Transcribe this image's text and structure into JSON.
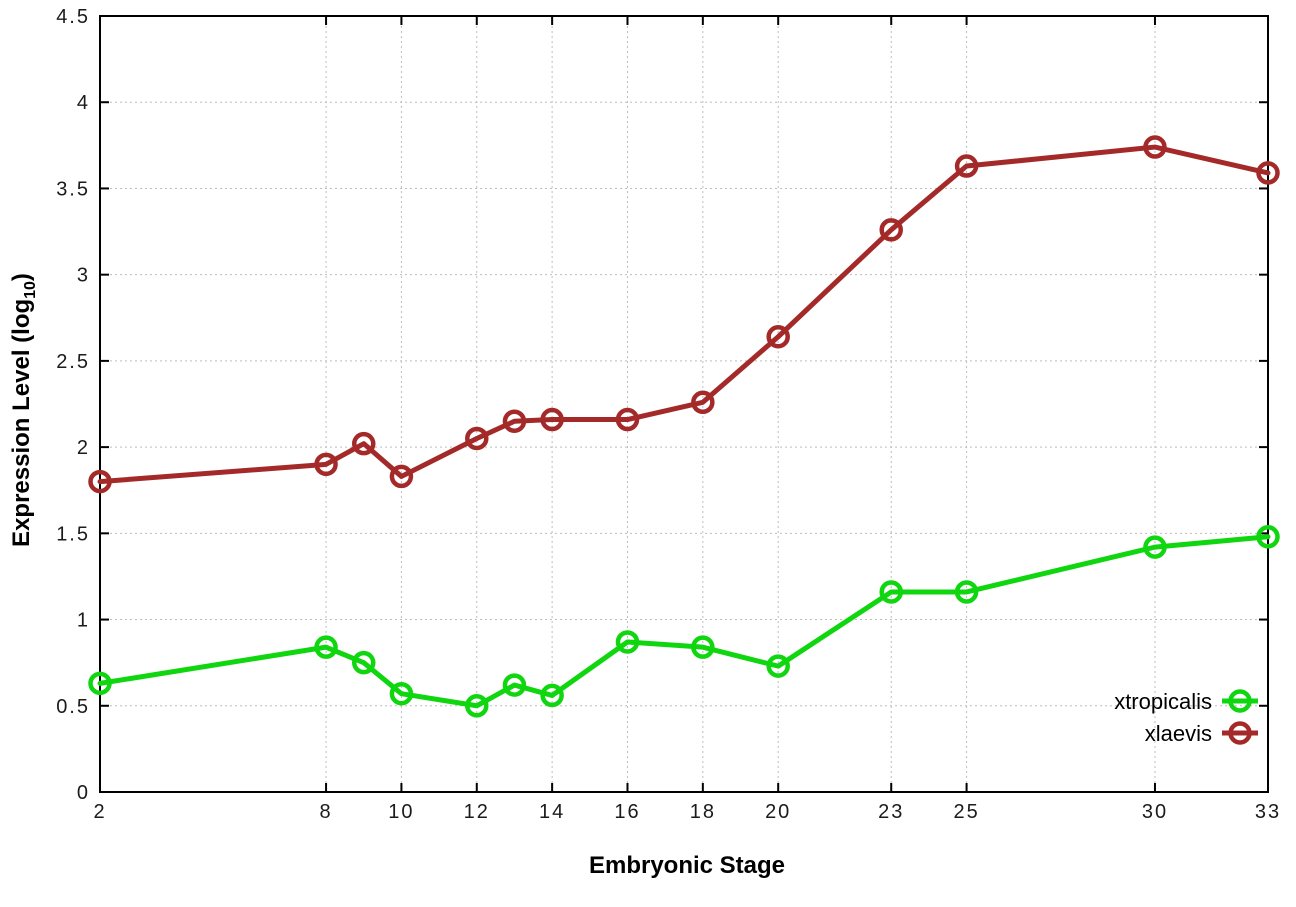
{
  "chart_data": {
    "type": "line",
    "title": "",
    "xlabel": "Embryonic Stage",
    "ylabel": "Expression Level (log10)",
    "ylabel_parts": {
      "main": "Expression Level (log",
      "sub": "10",
      "end": ")"
    },
    "xlim": [
      2,
      33
    ],
    "ylim": [
      0,
      4.5
    ],
    "grid": true,
    "legend_position": "bottom-right",
    "marker": "open-circle",
    "x": [
      2,
      8,
      9,
      10,
      12,
      13,
      14,
      16,
      18,
      20,
      23,
      25,
      30,
      33
    ],
    "xticks": [
      2,
      8,
      10,
      12,
      14,
      16,
      18,
      20,
      23,
      25,
      30,
      33
    ],
    "xtick_labels": [
      "2",
      "8",
      "10",
      "12",
      "14",
      "16",
      "18",
      "20",
      "23",
      "25",
      "30",
      "33"
    ],
    "yticks": [
      0,
      0.5,
      1,
      1.5,
      2,
      2.5,
      3,
      3.5,
      4,
      4.5
    ],
    "ytick_labels": [
      "0",
      "0.5",
      "1",
      "1.5",
      "2",
      "2.5",
      "3",
      "3.5",
      "4",
      "4.5"
    ],
    "series": [
      {
        "name": "xtropicalis",
        "color": "#0fd60f",
        "values": [
          0.63,
          0.84,
          0.75,
          0.57,
          0.5,
          0.62,
          0.56,
          0.87,
          0.84,
          0.73,
          1.16,
          1.16,
          1.42,
          1.48
        ]
      },
      {
        "name": "xlaevis",
        "color": "#a42a2a",
        "values": [
          1.8,
          1.9,
          2.02,
          1.83,
          2.05,
          2.15,
          2.16,
          2.16,
          2.26,
          2.64,
          3.26,
          3.63,
          3.74,
          3.59
        ]
      }
    ]
  }
}
